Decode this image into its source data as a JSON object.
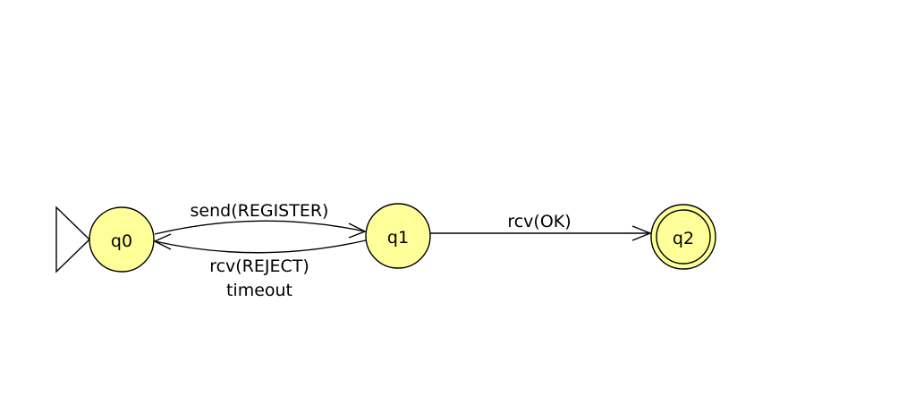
{
  "diagram": {
    "states": {
      "q0": {
        "label": "q0",
        "initial": true,
        "accepting": false
      },
      "q1": {
        "label": "q1",
        "initial": false,
        "accepting": false
      },
      "q2": {
        "label": "q2",
        "initial": false,
        "accepting": true
      }
    },
    "transitions": {
      "q0_q1": {
        "from": "q0",
        "to": "q1",
        "label": "send(REGISTER)"
      },
      "q1_q0": {
        "from": "q1",
        "to": "q0",
        "label_line1": "rcv(REJECT)",
        "label_line2": "timeout"
      },
      "q1_q2": {
        "from": "q1",
        "to": "q2",
        "label": "rcv(OK)"
      }
    },
    "colors": {
      "state_fill": "#ffff99",
      "stroke": "#000000",
      "background": "#ffffff"
    }
  }
}
